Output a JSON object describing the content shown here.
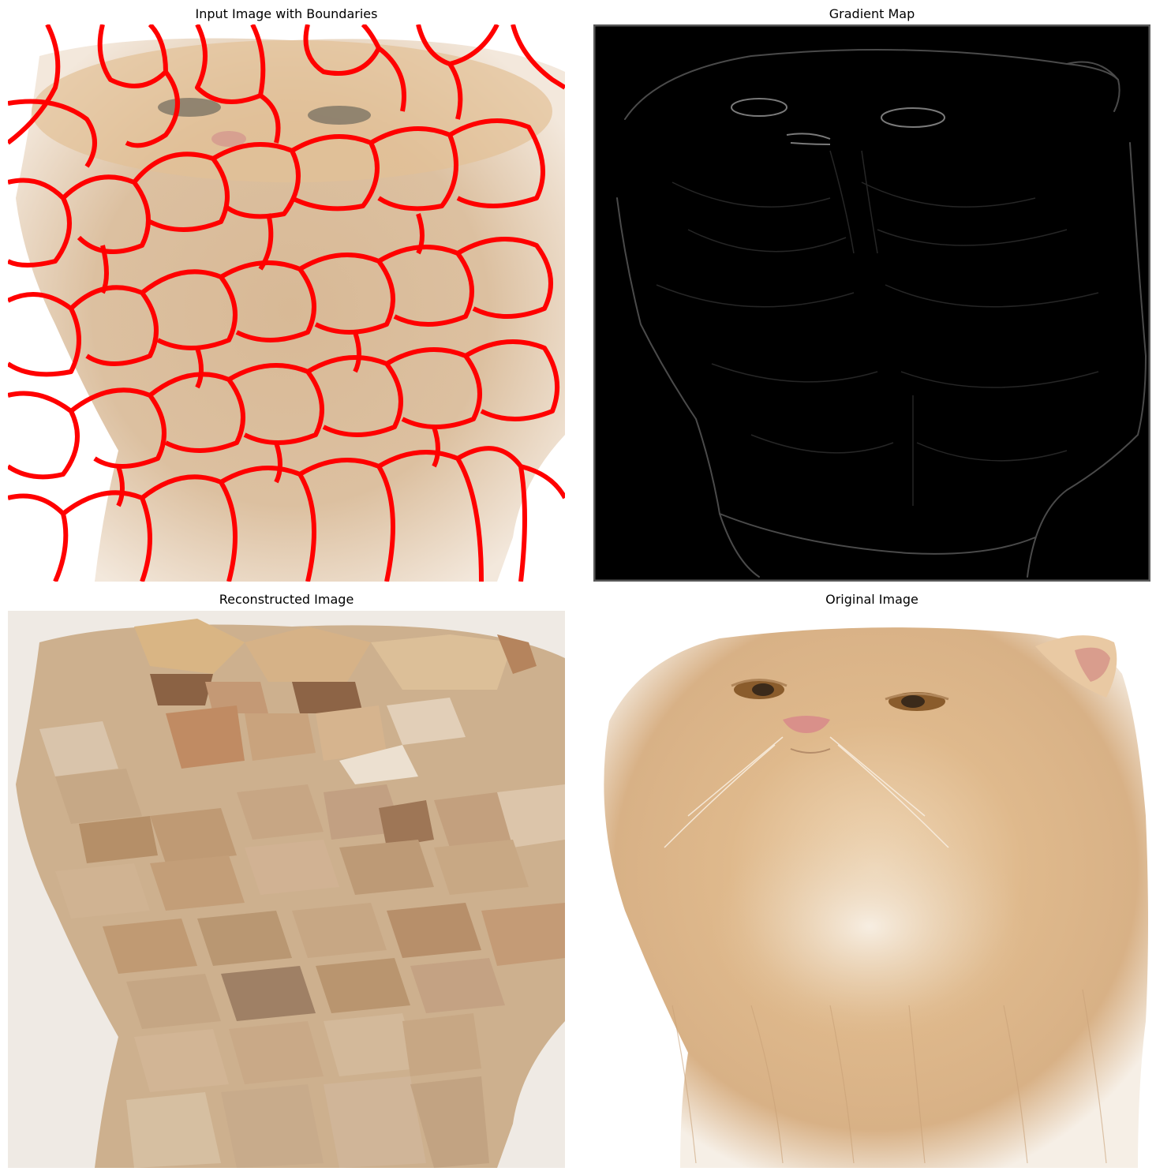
{
  "figure": {
    "panels": [
      {
        "title": "Input Image with Boundaries",
        "content": "cat-photo-with-red-superpixel-boundaries",
        "boundary_color": "#ff0000"
      },
      {
        "title": "Gradient Map",
        "content": "grayscale-edge-map-of-cat"
      },
      {
        "title": "Reconstructed Image",
        "content": "superpixel-mean-color-reconstruction"
      },
      {
        "title": "Original Image",
        "content": "photo-of-fluffy-orange-persian-cat"
      }
    ]
  }
}
